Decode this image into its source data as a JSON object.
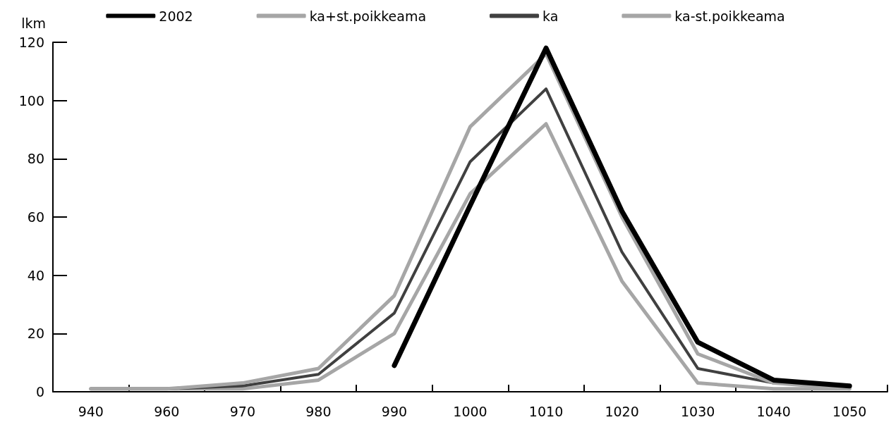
{
  "chart_data": {
    "type": "line",
    "ylabel": "lkm",
    "categories": [
      "940",
      "960",
      "970",
      "980",
      "990",
      "1000",
      "1010",
      "1020",
      "1030",
      "1040",
      "1050"
    ],
    "series": [
      {
        "name": "2002",
        "color": "#000000",
        "values": [
          null,
          null,
          null,
          null,
          9,
          64,
          118,
          62,
          17,
          4,
          2
        ]
      },
      {
        "name": "ka+st.poikkeama",
        "color": "#a6a6a6",
        "values": [
          1,
          1,
          3,
          8,
          33,
          91,
          116,
          60,
          13,
          3,
          1
        ]
      },
      {
        "name": "ka",
        "color": "#404040",
        "values": [
          1,
          1,
          2,
          6,
          27,
          79,
          104,
          48,
          8,
          3,
          2
        ]
      },
      {
        "name": "ka-st.poikkeama",
        "color": "#a6a6a6",
        "values": [
          1,
          1,
          1,
          4,
          20,
          68,
          92,
          38,
          3,
          1,
          1
        ]
      }
    ],
    "ylim": [
      0,
      120
    ],
    "yticks": [
      0,
      20,
      40,
      60,
      80,
      100,
      120
    ],
    "grid": false,
    "legend": "top",
    "marker": "none",
    "line_style": "solid"
  }
}
